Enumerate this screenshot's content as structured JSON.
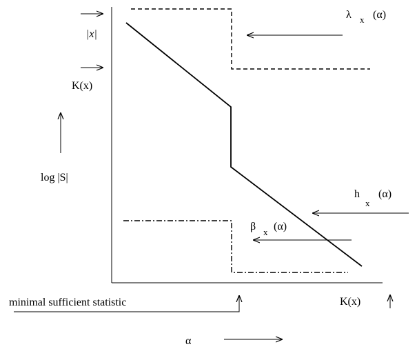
{
  "labels": {
    "abs_x": "|x|",
    "kx_left": "K(x)",
    "log_s": "log |S|",
    "lambda_sym": "λ",
    "lambda_sub": "x",
    "lambda_arg": "(α)",
    "h_sym": "h",
    "h_sub": "x",
    "h_arg": "(α)",
    "beta_sym": "β",
    "beta_sub": "x",
    "beta_arg": "(α)",
    "mss": "minimal sufficient statistic",
    "kx_bottom": "K(x)",
    "alpha": "α"
  },
  "styles": {
    "ink": "#000000",
    "background": "#ffffff"
  }
}
